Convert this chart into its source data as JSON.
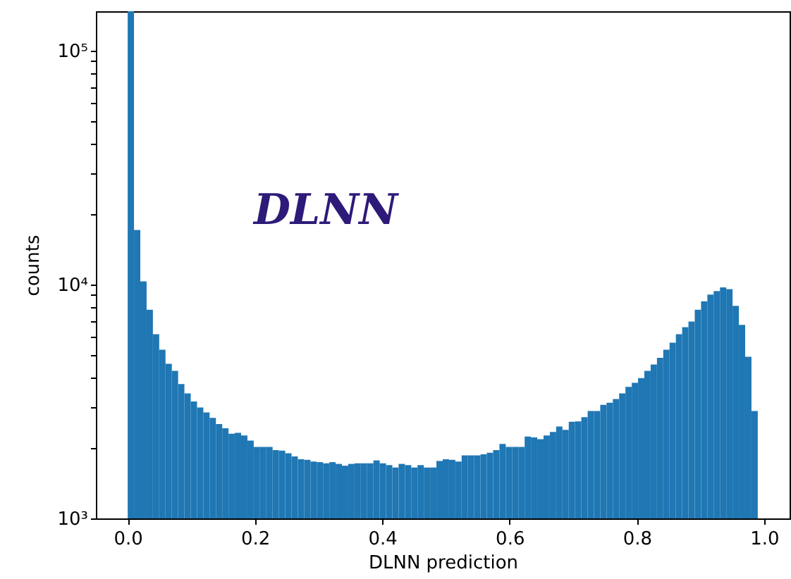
{
  "chart_data": {
    "type": "histogram",
    "xlabel": "DLNN prediction",
    "ylabel": "counts",
    "annotations": [
      "DLNN"
    ],
    "bins": [
      0,
      0.0099,
      0.0198,
      0.0297,
      0.0396,
      0.0495,
      0.0594,
      0.0693,
      0.0792,
      0.0891,
      0.099,
      0.1089,
      0.1188,
      0.1287,
      0.1386,
      0.1485,
      0.1584,
      0.1683,
      0.1782,
      0.1881,
      0.198,
      0.2079,
      0.2178,
      0.2277,
      0.2376,
      0.2475,
      0.2574,
      0.2673,
      0.2772,
      0.2871,
      0.297,
      0.3069,
      0.3168,
      0.3267,
      0.3366,
      0.3465,
      0.3564,
      0.3663,
      0.3762,
      0.3861,
      0.396,
      0.4059,
      0.4158,
      0.4257,
      0.4356,
      0.4455,
      0.4554,
      0.4653,
      0.4752,
      0.4851,
      0.495,
      0.5049,
      0.5148,
      0.5247,
      0.5346,
      0.5445,
      0.5544,
      0.5643,
      0.5742,
      0.5841,
      0.594,
      0.6039,
      0.6138,
      0.6237,
      0.6336,
      0.6435,
      0.6534,
      0.6633,
      0.6732,
      0.6831,
      0.693,
      0.7029,
      0.7128,
      0.7227,
      0.7326,
      0.7425,
      0.7524,
      0.7623,
      0.7722,
      0.7821,
      0.792,
      0.8019,
      0.8118,
      0.8217,
      0.8316,
      0.8415,
      0.8514,
      0.8613,
      0.8712,
      0.8811,
      0.891,
      0.9009,
      0.9108,
      0.9207,
      0.9306,
      0.9405,
      0.9504,
      0.9603,
      0.9702,
      0.9801,
      0.99
    ],
    "values": [
      147000,
      17100,
      10300,
      7790,
      6130,
      5260,
      4580,
      4270,
      3750,
      3420,
      3160,
      2980,
      2840,
      2690,
      2530,
      2430,
      2300,
      2320,
      2260,
      2150,
      2020,
      2020,
      2020,
      1960,
      1950,
      1900,
      1840,
      1790,
      1780,
      1750,
      1740,
      1720,
      1740,
      1710,
      1680,
      1710,
      1720,
      1720,
      1720,
      1770,
      1720,
      1690,
      1650,
      1710,
      1690,
      1650,
      1690,
      1650,
      1650,
      1760,
      1790,
      1780,
      1750,
      1860,
      1860,
      1860,
      1880,
      1910,
      1960,
      2080,
      2020,
      2020,
      2020,
      2240,
      2220,
      2180,
      2260,
      2340,
      2470,
      2390,
      2590,
      2600,
      2710,
      2880,
      2880,
      3060,
      3120,
      3240,
      3420,
      3650,
      3800,
      3980,
      4270,
      4550,
      4860,
      5260,
      5640,
      6130,
      6570,
      6940,
      7790,
      8470,
      9040,
      9370,
      9720,
      9550,
      8090,
      6720,
      4910,
      2880
    ],
    "color": "#1f77b4",
    "log": true,
    "xlim": [
      -0.05,
      1.04
    ],
    "xticks": [
      {
        "value": 0,
        "label": "0.0"
      },
      {
        "value": 0.2,
        "label": "0.2"
      },
      {
        "value": 0.4,
        "label": "0.4"
      },
      {
        "value": 0.6,
        "label": "0.6"
      },
      {
        "value": 0.8,
        "label": "0.8"
      },
      {
        "value": 1,
        "label": "1.0"
      }
    ],
    "ylim": [
      1000,
      147000
    ],
    "yticks": [
      {
        "value": 1000,
        "label": "10³"
      },
      {
        "value": 2000,
        "label": null
      },
      {
        "value": 3000,
        "label": null
      },
      {
        "value": 4000,
        "label": null
      },
      {
        "value": 5000,
        "label": null
      },
      {
        "value": 6000,
        "label": null
      },
      {
        "value": 7000,
        "label": null
      },
      {
        "value": 8000,
        "label": null
      },
      {
        "value": 9000,
        "label": null
      },
      {
        "value": 10000,
        "label": "10⁴"
      },
      {
        "value": 20000,
        "label": null
      },
      {
        "value": 30000,
        "label": null
      },
      {
        "value": 40000,
        "label": null
      },
      {
        "value": 50000,
        "label": null
      },
      {
        "value": 60000,
        "label": null
      },
      {
        "value": 70000,
        "label": null
      },
      {
        "value": 80000,
        "label": null
      },
      {
        "value": 90000,
        "label": null
      },
      {
        "value": 100000,
        "label": "10⁵"
      }
    ],
    "grid": false
  }
}
